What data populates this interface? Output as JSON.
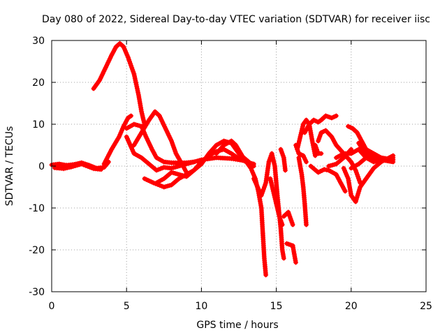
{
  "chart_data": {
    "type": "scatter",
    "title": "Day 080 of 2022, Sidereal Day-to-day VTEC variation (SDTVAR) for receiver iisc",
    "xlabel": "GPS time / hours",
    "ylabel": "SDTVAR / TECUs",
    "xlim": [
      0,
      25
    ],
    "ylim": [
      -30,
      30
    ],
    "xticks": [
      0,
      5,
      10,
      15,
      20,
      25
    ],
    "yticks": [
      -30,
      -20,
      -10,
      0,
      10,
      20,
      30
    ],
    "grid": true,
    "marker": "+",
    "color": "#ff0000",
    "series": [
      {
        "points": [
          [
            0,
            0.3
          ],
          [
            0.5,
            0.5
          ],
          [
            1,
            0.2
          ],
          [
            1.5,
            0.4
          ],
          [
            2,
            0.8
          ],
          [
            2.5,
            0.2
          ],
          [
            3,
            -0.5
          ],
          [
            3.5,
            -0.3
          ],
          [
            3.8,
            1
          ]
        ]
      },
      {
        "points": [
          [
            0.2,
            -0.4
          ],
          [
            0.8,
            -0.6
          ],
          [
            1.3,
            -0.2
          ],
          [
            2,
            0.5
          ],
          [
            2.8,
            -0.6
          ],
          [
            3.3,
            -0.8
          ]
        ]
      },
      {
        "points": [
          [
            2.8,
            18.5
          ],
          [
            3.2,
            20.5
          ],
          [
            3.6,
            23.5
          ],
          [
            4,
            26.5
          ],
          [
            4.3,
            28.5
          ],
          [
            4.55,
            29.3
          ],
          [
            4.8,
            28.5
          ],
          [
            5.1,
            26
          ],
          [
            5.5,
            22
          ],
          [
            5.8,
            17
          ],
          [
            6,
            13
          ],
          [
            6.2,
            10
          ]
        ]
      },
      {
        "points": [
          [
            3.5,
            0.5
          ],
          [
            4,
            4
          ],
          [
            4.5,
            7
          ],
          [
            4.8,
            9.5
          ],
          [
            5.1,
            11.5
          ],
          [
            5.3,
            12
          ]
        ]
      },
      {
        "points": [
          [
            5,
            9
          ],
          [
            5.5,
            10
          ],
          [
            6,
            9.5
          ],
          [
            6.3,
            7
          ],
          [
            6.7,
            4
          ],
          [
            7,
            2
          ],
          [
            7.5,
            1
          ],
          [
            8,
            0.8
          ],
          [
            9,
            0.8
          ],
          [
            9.5,
            1
          ]
        ]
      },
      {
        "points": [
          [
            5,
            7
          ],
          [
            5.5,
            3
          ],
          [
            6,
            2
          ],
          [
            6.5,
            0.5
          ],
          [
            7,
            -1
          ],
          [
            7.5,
            -0.3
          ],
          [
            8,
            -0.5
          ],
          [
            9,
            0.5
          ],
          [
            10,
            1.5
          ],
          [
            11,
            2
          ],
          [
            12,
            1.8
          ],
          [
            13,
            1.2
          ]
        ]
      },
      {
        "points": [
          [
            5.5,
            5
          ],
          [
            6,
            8
          ],
          [
            6.5,
            11
          ],
          [
            6.9,
            13
          ],
          [
            7.2,
            12
          ],
          [
            7.6,
            9
          ],
          [
            8,
            6
          ],
          [
            8.3,
            3
          ],
          [
            8.7,
            0.5
          ],
          [
            9,
            -1.5
          ]
        ]
      },
      {
        "points": [
          [
            6.2,
            -3
          ],
          [
            6.8,
            -4
          ],
          [
            7.5,
            -5
          ],
          [
            8,
            -4.5
          ],
          [
            8.5,
            -3
          ],
          [
            9,
            -2
          ],
          [
            9.5,
            -1
          ],
          [
            10,
            0.5
          ],
          [
            10.5,
            3
          ],
          [
            11,
            5
          ],
          [
            11.5,
            6
          ],
          [
            12,
            5.5
          ],
          [
            12.5,
            3
          ],
          [
            13,
            1.5
          ],
          [
            13.5,
            0
          ]
        ]
      },
      {
        "points": [
          [
            7,
            -4
          ],
          [
            7.5,
            -3
          ],
          [
            8,
            -1.5
          ],
          [
            8.5,
            -2
          ],
          [
            9,
            -2.5
          ],
          [
            9.5,
            -1
          ],
          [
            10,
            1
          ],
          [
            10.5,
            2.5
          ],
          [
            11,
            3.5
          ],
          [
            11.5,
            4
          ],
          [
            12,
            3
          ],
          [
            12.5,
            1.8
          ],
          [
            13,
            1
          ],
          [
            13.5,
            0.5
          ]
        ]
      },
      {
        "points": [
          [
            11,
            3
          ],
          [
            11.5,
            5
          ],
          [
            12,
            6
          ],
          [
            12.3,
            5
          ],
          [
            12.8,
            2
          ],
          [
            13.3,
            -0.5
          ],
          [
            13.6,
            -3
          ],
          [
            13.8,
            -6
          ],
          [
            14,
            -10
          ],
          [
            14.1,
            -16
          ],
          [
            14.2,
            -22
          ],
          [
            14.3,
            -26
          ]
        ]
      },
      {
        "points": [
          [
            13.5,
            -3
          ],
          [
            14,
            -7
          ],
          [
            14.3,
            -4
          ],
          [
            14.5,
            1
          ],
          [
            14.7,
            3
          ],
          [
            14.9,
            0
          ],
          [
            15.1,
            -8
          ],
          [
            15.3,
            -15
          ],
          [
            15.4,
            -20
          ],
          [
            15.5,
            -22
          ]
        ]
      },
      {
        "points": [
          [
            14.6,
            -3
          ],
          [
            14.8,
            -6
          ],
          [
            15,
            -9
          ],
          [
            15.2,
            -12
          ],
          [
            15.4,
            -14
          ]
        ]
      },
      {
        "points": [
          [
            15.3,
            4
          ],
          [
            15.5,
            2
          ],
          [
            15.6,
            -1
          ]
        ]
      },
      {
        "points": [
          [
            15.5,
            -12
          ],
          [
            15.8,
            -11
          ],
          [
            16,
            -13
          ],
          [
            16.1,
            -14
          ]
        ]
      },
      {
        "points": [
          [
            15.7,
            -18.5
          ],
          [
            16.1,
            -19
          ]
        ]
      },
      {
        "points": [
          [
            16.1,
            -19
          ],
          [
            16.2,
            -21
          ],
          [
            16.3,
            -23
          ]
        ]
      },
      {
        "points": [
          [
            16.3,
            5
          ],
          [
            16.5,
            3
          ],
          [
            16.8,
            2.5
          ],
          [
            17,
            1
          ]
        ]
      },
      {
        "points": [
          [
            16.4,
            4
          ],
          [
            16.6,
            7
          ],
          [
            16.8,
            10
          ],
          [
            17,
            11
          ],
          [
            17.2,
            10
          ],
          [
            17.4,
            6
          ],
          [
            17.6,
            2.5
          ]
        ]
      },
      {
        "points": [
          [
            16.5,
            2
          ],
          [
            16.7,
            -2
          ],
          [
            16.8,
            -5
          ],
          [
            16.9,
            -9
          ],
          [
            17,
            -14
          ]
        ]
      },
      {
        "points": [
          [
            16.9,
            8
          ],
          [
            17.2,
            10
          ],
          [
            17.5,
            11
          ],
          [
            17.8,
            10.5
          ],
          [
            18,
            11
          ],
          [
            18.3,
            12
          ],
          [
            18.7,
            11.5
          ],
          [
            19,
            12
          ]
        ]
      },
      {
        "points": [
          [
            17.6,
            5
          ],
          [
            17.8,
            3
          ],
          [
            18,
            3
          ]
        ]
      },
      {
        "points": [
          [
            17.8,
            6
          ],
          [
            18,
            8
          ],
          [
            18.3,
            8.5
          ],
          [
            18.7,
            7
          ],
          [
            19,
            5
          ],
          [
            19.5,
            3
          ],
          [
            20,
            1
          ],
          [
            20.3,
            -1
          ],
          [
            20.6,
            -4
          ]
        ]
      },
      {
        "points": [
          [
            17.3,
            0
          ],
          [
            17.8,
            -1.5
          ],
          [
            18.2,
            -0.8
          ],
          [
            18.5,
            -1
          ],
          [
            19,
            -2
          ],
          [
            19.3,
            -4
          ],
          [
            19.6,
            -6
          ]
        ]
      },
      {
        "points": [
          [
            18.5,
            0
          ],
          [
            19,
            0.5
          ],
          [
            19.5,
            2
          ],
          [
            20,
            4
          ]
        ]
      },
      {
        "points": [
          [
            19,
            2
          ],
          [
            19.5,
            3
          ],
          [
            20,
            3
          ],
          [
            20.5,
            4
          ],
          [
            21,
            2
          ],
          [
            21.5,
            1
          ],
          [
            22,
            1.5
          ],
          [
            22.8,
            2
          ]
        ]
      },
      {
        "points": [
          [
            19.8,
            9.5
          ],
          [
            20.1,
            9
          ],
          [
            20.4,
            8
          ],
          [
            20.7,
            6
          ],
          [
            21,
            4
          ],
          [
            21.5,
            3
          ],
          [
            22,
            2
          ],
          [
            22.8,
            1.5
          ]
        ]
      },
      {
        "points": [
          [
            19.5,
            -0.5
          ],
          [
            19.8,
            -3
          ],
          [
            20,
            -7
          ],
          [
            20.3,
            -8.5
          ],
          [
            20.6,
            -5
          ],
          [
            21,
            -3
          ],
          [
            21.5,
            -0.5
          ],
          [
            22,
            1
          ],
          [
            22.8,
            2.5
          ]
        ]
      },
      {
        "points": [
          [
            20,
            -0.5
          ],
          [
            20.5,
            0.5
          ],
          [
            21,
            2
          ],
          [
            21.5,
            1.5
          ],
          [
            22,
            2
          ],
          [
            22.8,
            1.5
          ]
        ]
      },
      {
        "points": [
          [
            20.5,
            5.5
          ],
          [
            21,
            3
          ],
          [
            21.5,
            2
          ],
          [
            22,
            1.5
          ],
          [
            22.8,
            1
          ]
        ]
      }
    ]
  }
}
